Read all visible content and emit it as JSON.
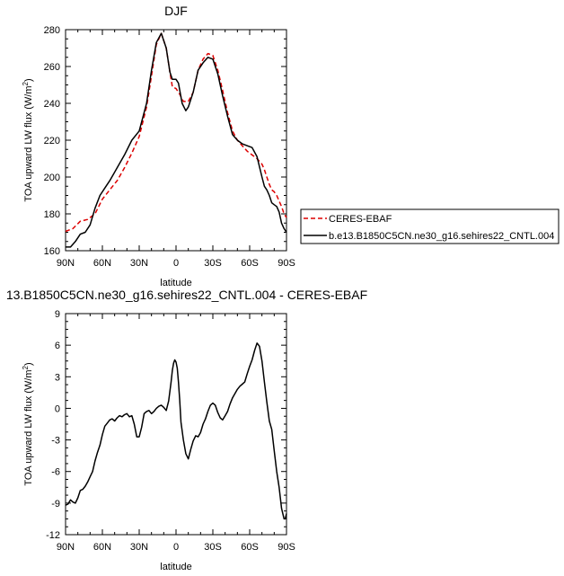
{
  "chart_data": [
    {
      "type": "line",
      "title": "DJF",
      "xlabel": "latitude",
      "ylabel_main": "TOA upward LW flux (W/m",
      "ylabel_sup": "2",
      "ylabel_tail": ")",
      "xlim": [
        90,
        -90
      ],
      "ylim": [
        160,
        280
      ],
      "xticks": [
        {
          "value": 90,
          "label": "90N"
        },
        {
          "value": 60,
          "label": "60N"
        },
        {
          "value": 30,
          "label": "30N"
        },
        {
          "value": 0,
          "label": "0"
        },
        {
          "value": -30,
          "label": "30S"
        },
        {
          "value": -60,
          "label": "60S"
        },
        {
          "value": -90,
          "label": "90S"
        }
      ],
      "yticks": [
        160,
        180,
        200,
        220,
        240,
        260,
        280
      ],
      "grid": false,
      "legend_placement": "right",
      "series": [
        {
          "name": "CERES-EBAF",
          "color": "#dd0000",
          "dash": true,
          "x": [
            90,
            84,
            78,
            72,
            66,
            60,
            54,
            48,
            42,
            36,
            30,
            24,
            20,
            16,
            12,
            8,
            5,
            3,
            0,
            -3,
            -6,
            -10,
            -14,
            -18,
            -22,
            -26,
            -30,
            -34,
            -38,
            -42,
            -46,
            -50,
            -54,
            -58,
            -62,
            -66,
            -70,
            -72,
            -74,
            -76,
            -78,
            -80,
            -82,
            -84,
            -86,
            -88,
            -90
          ],
          "values": [
            170.5,
            172,
            176,
            177,
            180,
            188,
            193,
            198,
            205,
            213,
            222,
            238,
            255,
            272,
            278,
            270,
            257,
            249,
            248,
            245,
            241,
            241,
            246,
            258,
            264,
            267,
            266,
            258,
            247,
            235,
            225,
            220,
            217,
            214,
            212,
            210,
            207,
            204,
            200,
            196,
            193,
            192,
            190,
            187,
            184,
            180,
            178
          ]
        },
        {
          "name": "b.e13.B1850C5CN.ne30_g16.sehires22_CNTL.004",
          "color": "#000000",
          "dash": false,
          "x": [
            90,
            86,
            82,
            78,
            74,
            70,
            66,
            62,
            58,
            54,
            48,
            42,
            36,
            30,
            24,
            20,
            16,
            12,
            8,
            5,
            3,
            0,
            -2,
            -5,
            -8,
            -10,
            -14,
            -18,
            -22,
            -26,
            -30,
            -34,
            -38,
            -42,
            -46,
            -50,
            -54,
            -58,
            -62,
            -66,
            -70,
            -72,
            -74,
            -76,
            -78,
            -80,
            -82,
            -84,
            -86,
            -88,
            -90
          ],
          "values": [
            162,
            162,
            165,
            169,
            170,
            174,
            183,
            190,
            194,
            198,
            205,
            212,
            220,
            225,
            240,
            258,
            273,
            278,
            270,
            257,
            253,
            253,
            251,
            240,
            236,
            238,
            246,
            258,
            262,
            265,
            264,
            256,
            244,
            233,
            223,
            220,
            218,
            217,
            216,
            211,
            200,
            195,
            193,
            190,
            186,
            185,
            184,
            181,
            175,
            172,
            170
          ]
        }
      ]
    },
    {
      "type": "line",
      "title": "13.B1850C5CN.ne30_g16.sehires22_CNTL.004 - CERES-EBAF",
      "xlabel": "latitude",
      "ylabel_main": "TOA upward LW flux (W/m",
      "ylabel_sup": "2",
      "ylabel_tail": ")",
      "xlim": [
        90,
        -90
      ],
      "ylim": [
        -12,
        9
      ],
      "xticks": [
        {
          "value": 90,
          "label": "90N"
        },
        {
          "value": 60,
          "label": "60N"
        },
        {
          "value": 30,
          "label": "30N"
        },
        {
          "value": 0,
          "label": "0"
        },
        {
          "value": -30,
          "label": "30S"
        },
        {
          "value": -60,
          "label": "60S"
        },
        {
          "value": -90,
          "label": "90S"
        }
      ],
      "yticks": [
        -12,
        -9,
        -6,
        -3,
        0,
        3,
        6,
        9
      ],
      "grid": false,
      "series": [
        {
          "color": "#000000",
          "dash": false,
          "x": [
            90,
            88,
            86,
            84,
            82,
            80,
            78,
            76,
            74,
            72,
            70,
            68,
            66,
            64,
            62,
            60,
            58,
            56,
            54,
            52,
            50,
            48,
            46,
            44,
            42,
            40,
            38,
            36,
            34,
            32,
            30,
            28,
            26,
            24,
            22,
            20,
            18,
            16,
            14,
            12,
            10,
            8,
            6,
            4,
            3,
            2,
            1,
            0,
            -1,
            -2,
            -3,
            -4,
            -6,
            -8,
            -10,
            -12,
            -14,
            -16,
            -18,
            -20,
            -22,
            -24,
            -26,
            -28,
            -30,
            -32,
            -34,
            -36,
            -38,
            -40,
            -42,
            -44,
            -46,
            -48,
            -50,
            -52,
            -54,
            -56,
            -58,
            -60,
            -62,
            -64,
            -66,
            -68,
            -70,
            -72,
            -74,
            -76,
            -78,
            -80,
            -82,
            -84,
            -86,
            -88,
            -89,
            -90
          ],
          "values": [
            -9.2,
            -9.1,
            -8.7,
            -8.9,
            -9.0,
            -8.5,
            -7.8,
            -7.7,
            -7.4,
            -7.0,
            -6.5,
            -6.0,
            -5.0,
            -4.2,
            -3.5,
            -2.5,
            -1.7,
            -1.4,
            -1.1,
            -1.0,
            -1.2,
            -0.9,
            -0.7,
            -0.8,
            -0.6,
            -0.5,
            -0.8,
            -0.7,
            -1.5,
            -2.7,
            -2.7,
            -1.8,
            -0.5,
            -0.3,
            -0.2,
            -0.5,
            -0.3,
            0.0,
            0.2,
            0.3,
            0.1,
            -0.2,
            0.7,
            2.5,
            3.6,
            4.3,
            4.6,
            4.4,
            3.8,
            2.5,
            0.8,
            -1.3,
            -3.0,
            -4.3,
            -4.8,
            -3.9,
            -3.1,
            -2.6,
            -2.7,
            -2.3,
            -1.5,
            -1.0,
            -0.3,
            0.3,
            0.5,
            0.3,
            -0.4,
            -0.9,
            -1.1,
            -0.7,
            -0.3,
            0.4,
            1.0,
            1.4,
            1.8,
            2.1,
            2.3,
            2.5,
            3.3,
            4.0,
            4.6,
            5.5,
            6.2,
            5.9,
            4.5,
            2.5,
            0.6,
            -1.2,
            -2.0,
            -4.0,
            -6.0,
            -7.5,
            -9.5,
            -10.5,
            -10.5,
            -10.0
          ]
        }
      ]
    }
  ]
}
